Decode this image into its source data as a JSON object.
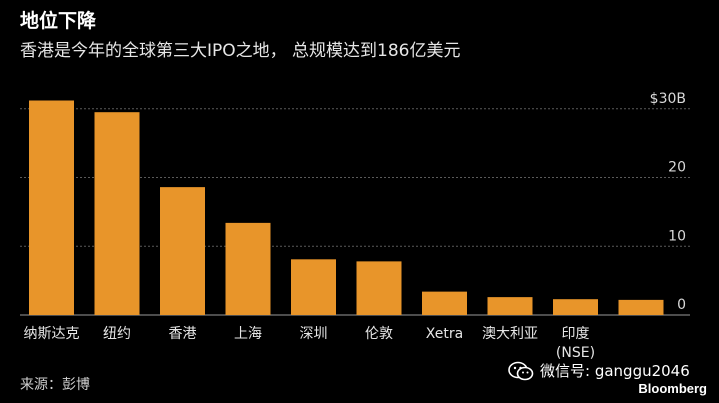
{
  "header": {
    "title": "地位下降",
    "subtitle": "香港是今年的全球第三大IPO之地， 总规模达到186亿美元"
  },
  "footer": {
    "source": "来源：彭博",
    "watermark_text": "微信号: ganggu2046",
    "brand": "Bloomberg"
  },
  "colors": {
    "bar": "#e8952a",
    "grid": "#5a5a5a",
    "axis": "#9a9a9a",
    "text": "#ffffff"
  },
  "chart_data": {
    "type": "bar",
    "categories": [
      "纳斯达克",
      "纽约",
      "香港",
      "上海",
      "深圳",
      "伦敦",
      "Xetra",
      "澳大利亚",
      "印度\n(NSE)",
      ""
    ],
    "values": [
      31.2,
      29.5,
      18.6,
      13.4,
      8.1,
      7.8,
      3.4,
      2.6,
      2.3,
      2.2
    ],
    "yticks": [
      {
        "value": 0,
        "label": "0"
      },
      {
        "value": 10,
        "label": "10"
      },
      {
        "value": 20,
        "label": "20"
      },
      {
        "value": 30,
        "label": "$30B"
      }
    ],
    "ylim": [
      0,
      32
    ],
    "grid": true
  }
}
